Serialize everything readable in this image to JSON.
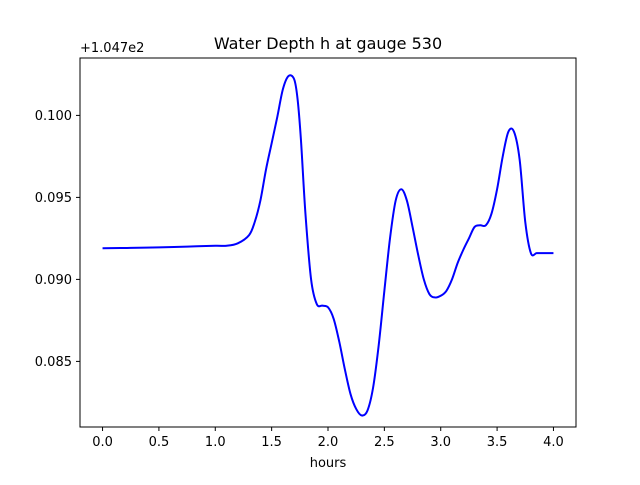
{
  "chart_data": {
    "type": "line",
    "title": "Water Depth h at gauge 530",
    "xlabel": "hours",
    "ylabel": "",
    "y_offset_label": "+1.047e2",
    "xlim": [
      -0.2,
      4.2
    ],
    "ylim": [
      0.081,
      0.1035
    ],
    "x_ticks": [
      0.0,
      0.5,
      1.0,
      1.5,
      2.0,
      2.5,
      3.0,
      3.5,
      4.0
    ],
    "x_tick_labels": [
      "0.0",
      "0.5",
      "1.0",
      "1.5",
      "2.0",
      "2.5",
      "3.0",
      "3.5",
      "4.0"
    ],
    "y_ticks": [
      0.085,
      0.09,
      0.095,
      0.1
    ],
    "y_tick_labels": [
      "0.085",
      "0.090",
      "0.095",
      "0.100"
    ],
    "grid": false,
    "series": [
      {
        "color": "#0000ff",
        "x": [
          0.0,
          0.25,
          0.5,
          0.75,
          1.0,
          1.1,
          1.2,
          1.3,
          1.35,
          1.4,
          1.45,
          1.5,
          1.55,
          1.6,
          1.65,
          1.7,
          1.73,
          1.76,
          1.8,
          1.85,
          1.9,
          1.95,
          2.0,
          2.05,
          2.1,
          2.15,
          2.2,
          2.25,
          2.3,
          2.35,
          2.4,
          2.45,
          2.5,
          2.55,
          2.6,
          2.65,
          2.7,
          2.75,
          2.8,
          2.85,
          2.9,
          2.95,
          3.0,
          3.05,
          3.1,
          3.15,
          3.2,
          3.25,
          3.3,
          3.35,
          3.4,
          3.45,
          3.5,
          3.55,
          3.6,
          3.65,
          3.7,
          3.75,
          3.8,
          3.85,
          3.9,
          3.95,
          4.0
        ],
        "y": [
          0.0919,
          0.09192,
          0.09195,
          0.092,
          0.09205,
          0.09205,
          0.0922,
          0.0927,
          0.0935,
          0.0948,
          0.0967,
          0.0983,
          0.0999,
          0.1016,
          0.1024,
          0.1022,
          0.101,
          0.0985,
          0.094,
          0.09,
          0.0885,
          0.0884,
          0.0883,
          0.0876,
          0.0862,
          0.0845,
          0.083,
          0.0821,
          0.0817,
          0.082,
          0.0834,
          0.086,
          0.0893,
          0.0925,
          0.0948,
          0.0955,
          0.0948,
          0.0932,
          0.0915,
          0.09,
          0.0891,
          0.0889,
          0.089,
          0.0893,
          0.09,
          0.091,
          0.0918,
          0.0925,
          0.0932,
          0.0933,
          0.0933,
          0.094,
          0.0955,
          0.0975,
          0.099,
          0.099,
          0.0973,
          0.0935,
          0.0916,
          0.0916,
          0.0916,
          0.0916,
          0.0916
        ]
      }
    ]
  }
}
